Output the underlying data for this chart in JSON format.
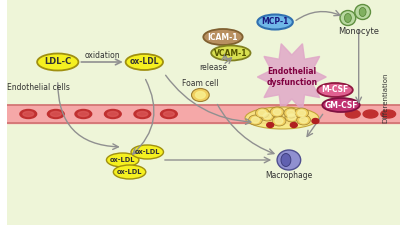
{
  "bg_outer": "#eef5d8",
  "bg_inner": "#f8f5d8",
  "strip_color": "#f5a8a8",
  "strip_border": "#d07070",
  "yellow_fill": "#f5f020",
  "yellow_border": "#a09010",
  "foam_fill": "#f0d060",
  "foam_border": "#a08030",
  "icam_fill": "#b89060",
  "icam_border": "#806030",
  "vcam_fill": "#d8e050",
  "vcam_border": "#808020",
  "mcp_fill": "#70b8e8",
  "mcp_border": "#3070b0",
  "pink_fill": "#e06090",
  "pink_border": "#901840",
  "dpink_fill": "#c03070",
  "dpink_border": "#801040",
  "mono_fill": "#b8d8a0",
  "mono_border": "#609040",
  "macro_fill": "#9090d0",
  "macro_border": "#505090",
  "arrow_color": "#909090",
  "star_color": "#e0a8c8",
  "labels": {
    "LDL_C": "LDL-C",
    "ox_LDL": "ox-LDL",
    "oxidation": "oxidation",
    "endothelial_cells": "Endothelial cells",
    "ICAM1": "ICAM-1",
    "VCAM1": "VCAM-1",
    "MCP1": "MCP-1",
    "release": "release",
    "endothelial_dysfunction": "Endothelial\ndysfunction",
    "monocyte": "Monocyte",
    "foam_cell": "Foam cell",
    "macrophage": "Macrophage",
    "M_CSF": "M-CSF",
    "GM_CSF": "GM-CSF",
    "differentiation": "Differentiation"
  }
}
